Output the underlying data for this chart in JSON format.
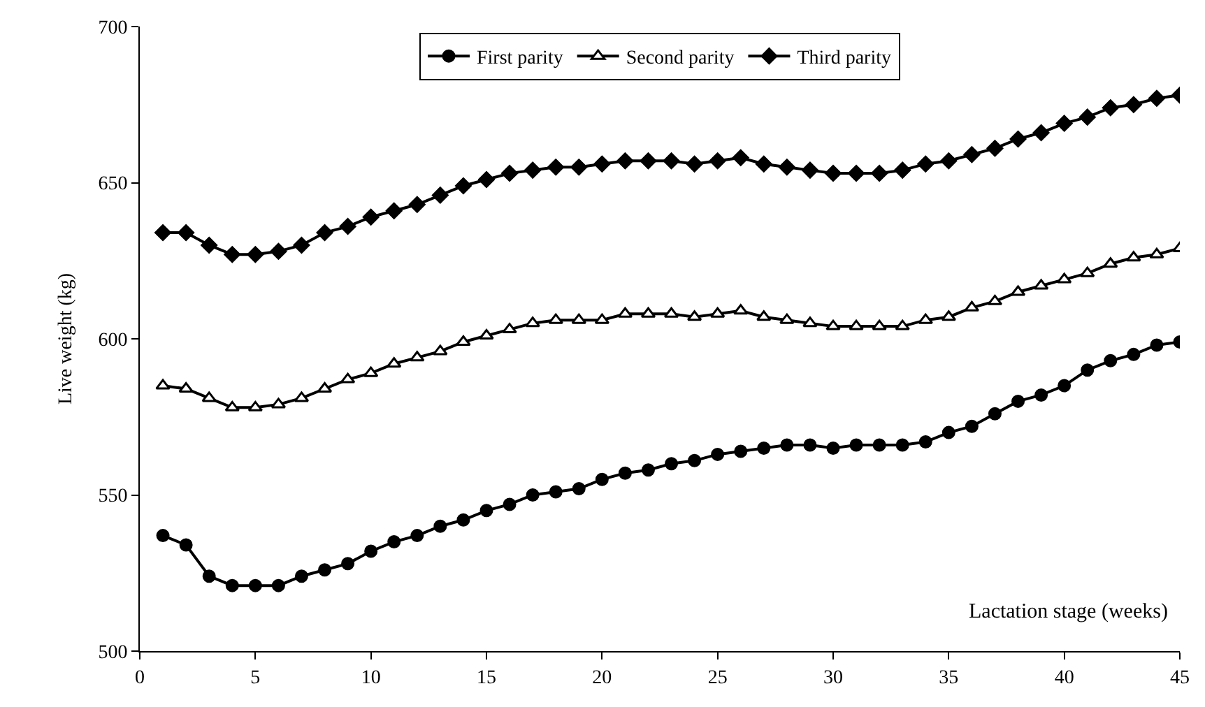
{
  "chart_data": {
    "type": "line",
    "xlabel": "Lactation stage (weeks)",
    "ylabel": "Live weight (kg)",
    "x": [
      1,
      2,
      3,
      4,
      5,
      6,
      7,
      8,
      9,
      10,
      11,
      12,
      13,
      14,
      15,
      16,
      17,
      18,
      19,
      20,
      21,
      22,
      23,
      24,
      25,
      26,
      27,
      28,
      29,
      30,
      31,
      32,
      33,
      34,
      35,
      36,
      37,
      38,
      39,
      40,
      41,
      42,
      43,
      44,
      45
    ],
    "series": [
      {
        "name": "First parity",
        "color": "#000000",
        "marker": "circle",
        "values": [
          537,
          534,
          524,
          521,
          521,
          521,
          524,
          526,
          528,
          532,
          535,
          537,
          540,
          542,
          545,
          547,
          550,
          551,
          552,
          555,
          557,
          558,
          560,
          561,
          563,
          564,
          565,
          566,
          566,
          565,
          566,
          566,
          566,
          567,
          570,
          572,
          576,
          580,
          582,
          585,
          590,
          593,
          595,
          598,
          599
        ]
      },
      {
        "name": "Second parity",
        "color": "#000000",
        "marker": "triangle",
        "values": [
          585,
          584,
          581,
          578,
          578,
          579,
          581,
          584,
          587,
          589,
          592,
          594,
          596,
          599,
          601,
          603,
          605,
          606,
          606,
          606,
          608,
          608,
          608,
          607,
          608,
          609,
          607,
          606,
          605,
          604,
          604,
          604,
          604,
          606,
          607,
          610,
          612,
          615,
          617,
          619,
          621,
          624,
          626,
          627,
          629
        ]
      },
      {
        "name": "Third parity",
        "color": "#000000",
        "marker": "diamond",
        "values": [
          634,
          634,
          630,
          627,
          627,
          628,
          630,
          634,
          636,
          639,
          641,
          643,
          646,
          649,
          651,
          653,
          654,
          655,
          655,
          656,
          657,
          657,
          657,
          656,
          657,
          658,
          656,
          655,
          654,
          653,
          653,
          653,
          654,
          656,
          657,
          659,
          661,
          664,
          666,
          669,
          671,
          674,
          675,
          677,
          678
        ]
      }
    ],
    "xlim": [
      0,
      45
    ],
    "xticks": [
      0,
      5,
      10,
      15,
      20,
      25,
      30,
      35,
      40,
      45
    ],
    "ylim": [
      500,
      700
    ],
    "yticks": [
      500,
      550,
      600,
      650,
      700
    ],
    "legend": "top",
    "line_style": "solid"
  }
}
